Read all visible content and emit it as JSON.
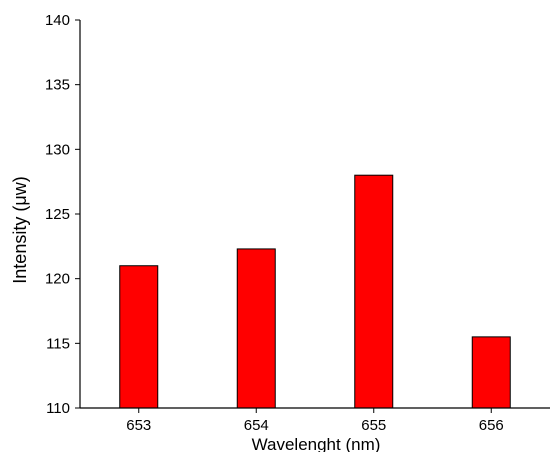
{
  "chart_data": {
    "type": "bar",
    "title": "",
    "xlabel": "Wavelenght (nm)",
    "ylabel": "Intensity (μw)",
    "categories": [
      "653",
      "654",
      "655",
      "656"
    ],
    "values": [
      121.0,
      122.3,
      128.0,
      115.5
    ],
    "ylim": [
      110,
      140
    ],
    "yticks": [
      "110",
      "115",
      "120",
      "125",
      "130",
      "135",
      "140"
    ],
    "bar_color": "#ff0000",
    "bar_outline": "#000000",
    "grid": false,
    "legend": "none"
  }
}
